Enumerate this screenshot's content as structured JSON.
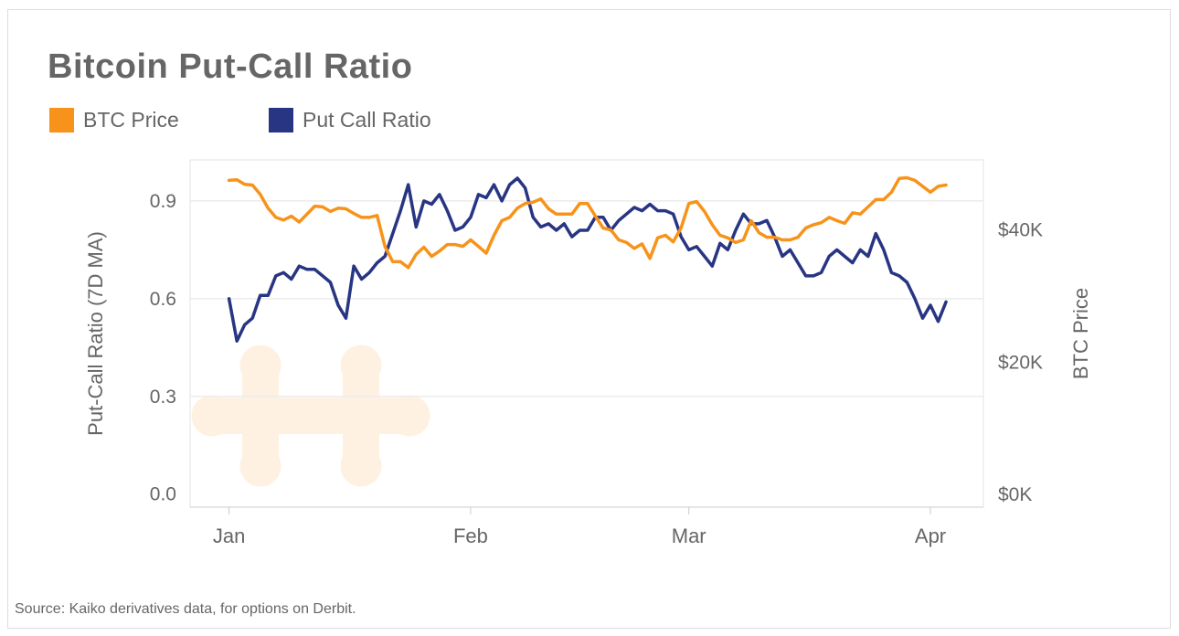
{
  "chart_data": {
    "type": "line",
    "title": "Bitcoin Put-Call Ratio",
    "source": "Source: Kaiko derivatives data, for options on Derbit.",
    "x_unit": "days since Jan 1",
    "xlim": [
      -5,
      96.8
    ],
    "x_ticks": [
      {
        "x": 0,
        "label": "Jan"
      },
      {
        "x": 31,
        "label": "Feb"
      },
      {
        "x": 59,
        "label": "Mar"
      },
      {
        "x": 90,
        "label": "Apr"
      }
    ],
    "y_left": {
      "label": "Put-Call Ratio (7D MA)",
      "ylim": [
        -0.04,
        1.026
      ],
      "ticks": [
        {
          "v": 0,
          "label": "0.0"
        },
        {
          "v": 0.3,
          "label": "0.3"
        },
        {
          "v": 0.6,
          "label": "0.6"
        },
        {
          "v": 0.9,
          "label": "0.9"
        }
      ]
    },
    "y_right": {
      "label": "BTC Price",
      "ylim": [
        -1.94,
        50.6
      ],
      "unit": "K USD",
      "ticks": [
        {
          "v": 0,
          "label": "$0K"
        },
        {
          "v": 20,
          "label": "$20K"
        },
        {
          "v": 40,
          "label": "$40K"
        }
      ]
    },
    "grid": true,
    "legend_position": "top-left",
    "series": [
      {
        "name": "BTC Price",
        "axis": "right",
        "color": "#F7931A",
        "values": [
          47.5,
          47.6,
          46.9,
          46.8,
          45.4,
          43.3,
          41.9,
          41.5,
          42.1,
          41.2,
          42.4,
          43.6,
          43.5,
          42.8,
          43.3,
          43.2,
          42.5,
          41.9,
          41.9,
          42.2,
          37.5,
          35.2,
          35.2,
          34.3,
          36.3,
          37.4,
          36.0,
          36.8,
          37.8,
          37.8,
          37.5,
          38.5,
          37.5,
          36.5,
          39.2,
          41.4,
          41.9,
          43.3,
          44.0,
          44.2,
          44.7,
          43.2,
          42.4,
          42.4,
          42.4,
          44.0,
          44.0,
          42.1,
          40.3,
          40.0,
          38.5,
          38.1,
          37.2,
          37.9,
          35.7,
          38.8,
          39.2,
          38.2,
          40.3,
          44.0,
          44.3,
          42.8,
          40.8,
          39.2,
          38.8,
          38.1,
          38.5,
          41.4,
          39.6,
          38.9,
          38.9,
          38.5,
          38.5,
          38.9,
          40.3,
          40.8,
          41.1,
          41.9,
          41.4,
          41.0,
          42.6,
          42.4,
          43.5,
          44.6,
          44.6,
          45.7,
          47.8,
          47.9,
          47.5,
          46.6,
          45.7,
          46.6,
          46.8
        ]
      },
      {
        "name": "Put Call Ratio",
        "axis": "left",
        "color": "#283583",
        "values": [
          0.6,
          0.47,
          0.52,
          0.54,
          0.61,
          0.61,
          0.67,
          0.68,
          0.66,
          0.7,
          0.69,
          0.69,
          0.67,
          0.65,
          0.58,
          0.54,
          0.7,
          0.66,
          0.68,
          0.71,
          0.73,
          0.8,
          0.87,
          0.95,
          0.82,
          0.9,
          0.89,
          0.92,
          0.87,
          0.81,
          0.82,
          0.85,
          0.92,
          0.91,
          0.95,
          0.9,
          0.95,
          0.97,
          0.94,
          0.85,
          0.82,
          0.83,
          0.81,
          0.83,
          0.79,
          0.81,
          0.81,
          0.85,
          0.85,
          0.81,
          0.84,
          0.86,
          0.88,
          0.87,
          0.89,
          0.87,
          0.87,
          0.86,
          0.79,
          0.75,
          0.76,
          0.73,
          0.7,
          0.77,
          0.75,
          0.81,
          0.86,
          0.83,
          0.83,
          0.84,
          0.79,
          0.73,
          0.75,
          0.71,
          0.67,
          0.67,
          0.68,
          0.73,
          0.75,
          0.73,
          0.71,
          0.75,
          0.73,
          0.8,
          0.75,
          0.68,
          0.67,
          0.65,
          0.6,
          0.54,
          0.58,
          0.53,
          0.59
        ]
      }
    ]
  }
}
